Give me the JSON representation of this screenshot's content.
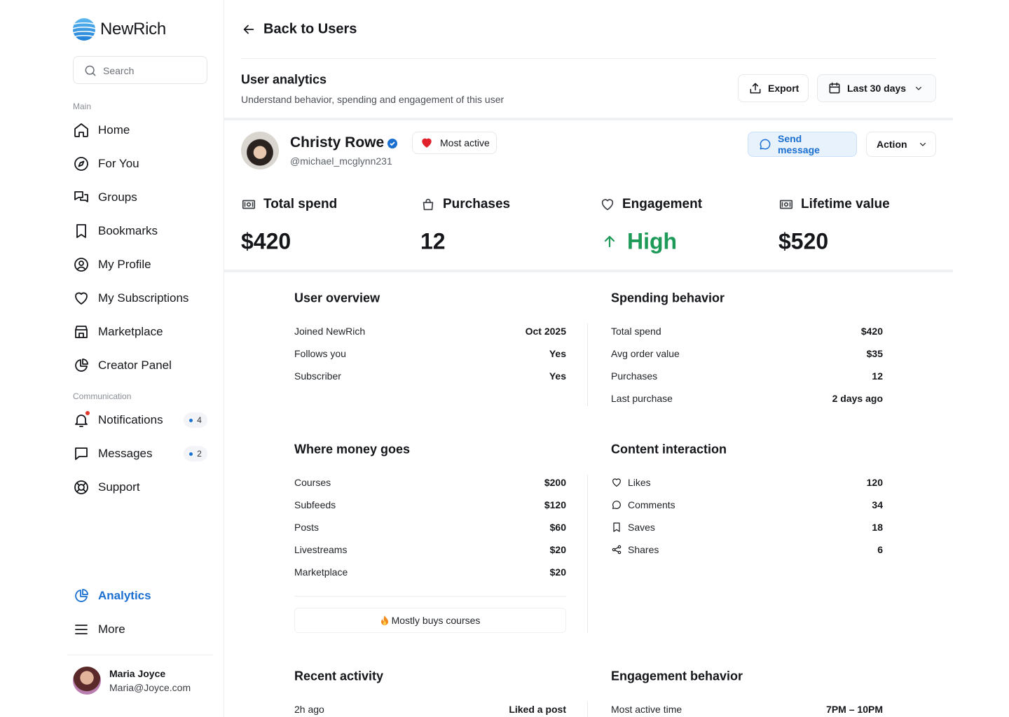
{
  "sidebar": {
    "brand": "NewRich",
    "search_placeholder": "Search",
    "sections": [
      {
        "label": "Main",
        "items": [
          {
            "label": "Home"
          },
          {
            "label": "For You"
          },
          {
            "label": "Groups"
          },
          {
            "label": "Bookmarks"
          },
          {
            "label": "My Profile"
          },
          {
            "label": "My Subscriptions"
          },
          {
            "label": "Marketplace"
          },
          {
            "label": "Creator Panel"
          }
        ]
      },
      {
        "label": "Communication",
        "items": [
          {
            "label": "Notifications",
            "badge": 4
          },
          {
            "label": "Messages",
            "badge": 2
          },
          {
            "label": "Support"
          }
        ]
      }
    ],
    "bottom_items": [
      {
        "label": "Analytics"
      },
      {
        "label": "More"
      }
    ],
    "user": {
      "name": "Maria Joyce",
      "email": "Maria@Joyce.com"
    }
  },
  "header": {
    "back": "Back to Users",
    "title": "User analytics",
    "subtitle": "Understand behavior, spending and engagement of this user",
    "export": "Export",
    "range": "Last 30 days"
  },
  "profile": {
    "name": "Christy Rowe",
    "handle": "@michael_mcglynn231",
    "badge": "Most active",
    "send": "Send message",
    "action": "Action"
  },
  "stats": [
    {
      "label": "Total spend",
      "value": "$420"
    },
    {
      "label": "Purchases",
      "value": "12"
    },
    {
      "label": "Engagement",
      "value": "High"
    },
    {
      "label": "Lifetime value",
      "value": "$520"
    }
  ],
  "panels": [
    {
      "title": "User overview",
      "rows": [
        {
          "label": "Joined NewRich",
          "value": "Oct 2025"
        },
        {
          "label": "Follows you",
          "value": "Yes"
        },
        {
          "label": "Subscriber",
          "value": "Yes"
        }
      ]
    },
    {
      "title": "Spending behavior",
      "rows": [
        {
          "label": "Total spend",
          "value": "$420"
        },
        {
          "label": "Avg order value",
          "value": "$35"
        },
        {
          "label": "Purchases",
          "value": "12"
        },
        {
          "label": "Last purchase",
          "value": "2 days ago"
        }
      ]
    },
    {
      "title": "Where money goes",
      "rows": [
        {
          "label": "Courses",
          "value": "$200"
        },
        {
          "label": "Subfeeds",
          "value": "$120"
        },
        {
          "label": "Posts",
          "value": "$60"
        },
        {
          "label": "Livestreams",
          "value": "$20"
        },
        {
          "label": "Marketplace",
          "value": "$20"
        }
      ],
      "note": "Mostly buys courses"
    },
    {
      "title": "Content interaction",
      "rows": [
        {
          "label": "Likes",
          "value": "120"
        },
        {
          "label": "Comments",
          "value": "34"
        },
        {
          "label": "Saves",
          "value": "18"
        },
        {
          "label": "Shares",
          "value": "6"
        }
      ]
    },
    {
      "title": "Recent activity",
      "rows": [
        {
          "label": "2h ago",
          "value": "Liked a post"
        }
      ]
    },
    {
      "title": "Engagement behavior",
      "rows": [
        {
          "label": "Most active time",
          "value": "7PM – 10PM"
        }
      ]
    }
  ]
}
